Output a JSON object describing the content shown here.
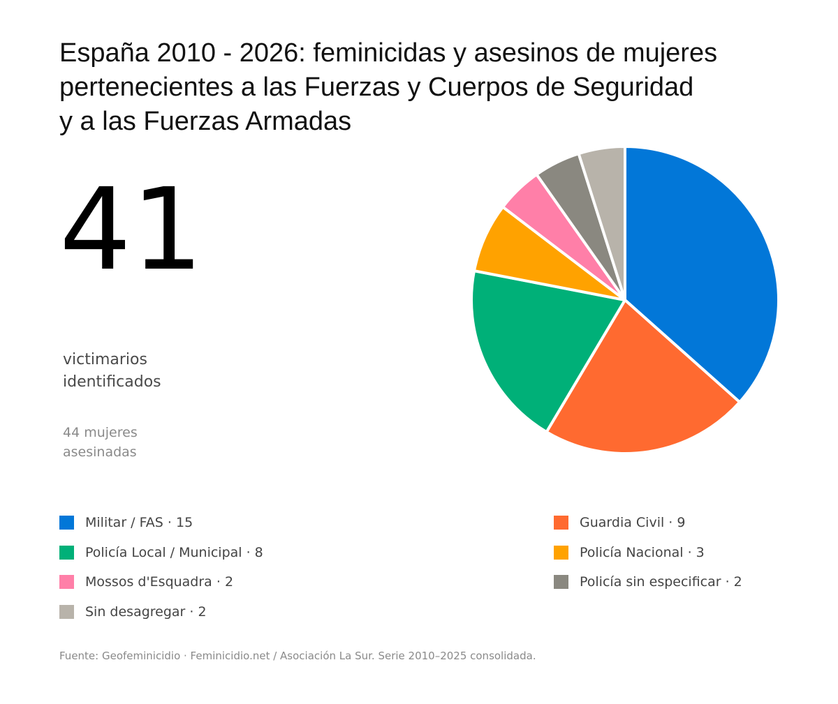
{
  "title_lines": [
    "España 2010 - 2026: feminicidas y asesinos de mujeres",
    "pertenecientes a las Fuerzas y Cuerpos de Seguridad",
    "y a las Fuerzas Armadas"
  ],
  "headline": {
    "number": "41",
    "label_lines": [
      "victimarios",
      "identificados"
    ],
    "sub_lines": [
      "44 mujeres",
      "asesinadas"
    ]
  },
  "source": "Fuente: Geofeminicidio · Feminicidio.net / Asociación La Sur. Serie 2010–2025 consolidada.",
  "chart_data": {
    "type": "pie",
    "title": "España 2010 - 2026: feminicidas y asesinos de mujeres pertenecientes a las Fuerzas y Cuerpos de Seguridad y a las Fuerzas Armadas",
    "start_angle": "12 o'clock",
    "direction": "clockwise",
    "legend_placement": "bottom",
    "slices": [
      {
        "label": "Militar / FAS",
        "value": 15,
        "color": "#0277d8",
        "legend_text": "Militar / FAS · 15"
      },
      {
        "label": "Guardia Civil",
        "value": 9,
        "color": "#ff6a30",
        "legend_text": "Guardia Civil · 9"
      },
      {
        "label": "Policía Local / Municipal",
        "value": 8,
        "color": "#00b078",
        "legend_text": "Policía Local / Municipal · 8"
      },
      {
        "label": "Policía Nacional",
        "value": 3,
        "color": "#ffa200",
        "legend_text": "Policía Nacional · 3"
      },
      {
        "label": "Mossos d'Esquadra",
        "value": 2,
        "color": "#ff7fa8",
        "legend_text": "Mossos d'Esquadra · 2"
      },
      {
        "label": "Policía sin especificar",
        "value": 2,
        "color": "#8a8880",
        "legend_text": "Policía sin especificar · 2"
      },
      {
        "label": "Sin desagregar",
        "value": 2,
        "color": "#b8b3aa",
        "legend_text": "Sin desagregar · 2"
      }
    ]
  }
}
